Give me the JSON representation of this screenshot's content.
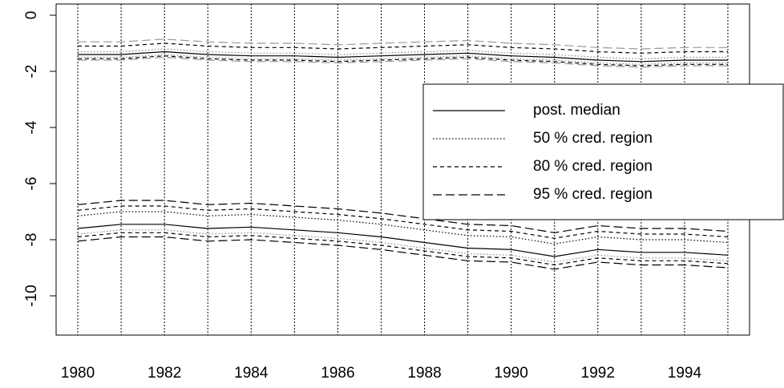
{
  "chart_data": {
    "type": "line",
    "x": [
      1980,
      1981,
      1982,
      1983,
      1984,
      1985,
      1986,
      1987,
      1988,
      1989,
      1990,
      1991,
      1992,
      1993,
      1994,
      1995
    ],
    "xlim": [
      1979.5,
      1995.5
    ],
    "xticks": [
      1980,
      1982,
      1984,
      1986,
      1988,
      1990,
      1992,
      1994
    ],
    "ylim": [
      -11.4,
      0.4
    ],
    "yticks": [
      0,
      -2,
      -4,
      -6,
      -8,
      -10
    ],
    "grid": true,
    "legend": {
      "position": "right",
      "entries": [
        {
          "label": "post. median",
          "dash": "solid",
          "color": "#000000"
        },
        {
          "label": "50 % cred. region",
          "dash": "dotted",
          "color": "#000000"
        },
        {
          "label": "80 % cred. region",
          "dash": "dashed",
          "color": "#000000"
        },
        {
          "label": "95 % cred. region",
          "dash": "longdash",
          "color": "#000000"
        }
      ]
    },
    "series": [
      {
        "dash": "longdash",
        "color": "#999999",
        "values": [
          -0.95,
          -0.95,
          -0.85,
          -0.95,
          -1.0,
          -1.0,
          -1.05,
          -1.0,
          -0.95,
          -0.9,
          -1.0,
          -1.05,
          -1.15,
          -1.2,
          -1.15,
          -1.15
        ]
      },
      {
        "dash": "dashed",
        "color": "#000000",
        "values": [
          -1.1,
          -1.1,
          -1.0,
          -1.1,
          -1.15,
          -1.15,
          -1.2,
          -1.15,
          -1.1,
          -1.05,
          -1.15,
          -1.2,
          -1.3,
          -1.35,
          -1.3,
          -1.3
        ]
      },
      {
        "dash": "dotted",
        "color": "#888888",
        "values": [
          -1.3,
          -1.3,
          -1.2,
          -1.3,
          -1.35,
          -1.35,
          -1.4,
          -1.35,
          -1.3,
          -1.25,
          -1.35,
          -1.4,
          -1.5,
          -1.55,
          -1.5,
          -1.5
        ]
      },
      {
        "dash": "solid",
        "color": "#000000",
        "values": [
          -1.4,
          -1.4,
          -1.3,
          -1.4,
          -1.45,
          -1.45,
          -1.5,
          -1.45,
          -1.4,
          -1.35,
          -1.45,
          -1.5,
          -1.6,
          -1.65,
          -1.6,
          -1.6
        ]
      },
      {
        "dash": "dotted",
        "color": "#888888",
        "values": [
          -1.5,
          -1.5,
          -1.4,
          -1.5,
          -1.55,
          -1.55,
          -1.6,
          -1.55,
          -1.5,
          -1.45,
          -1.55,
          -1.6,
          -1.7,
          -1.75,
          -1.7,
          -1.7
        ]
      },
      {
        "dash": "dashed",
        "color": "#000000",
        "values": [
          -1.55,
          -1.55,
          -1.45,
          -1.55,
          -1.6,
          -1.6,
          -1.65,
          -1.6,
          -1.55,
          -1.5,
          -1.6,
          -1.65,
          -1.75,
          -1.8,
          -1.75,
          -1.75
        ]
      },
      {
        "dash": "longdash",
        "color": "#999999",
        "values": [
          -1.6,
          -1.6,
          -1.5,
          -1.6,
          -1.65,
          -1.65,
          -1.7,
          -1.65,
          -1.6,
          -1.55,
          -1.65,
          -1.7,
          -1.8,
          -1.85,
          -1.8,
          -1.8
        ]
      },
      {
        "dash": "longdash",
        "color": "#000000",
        "values": [
          -6.75,
          -6.6,
          -6.6,
          -6.75,
          -6.7,
          -6.8,
          -6.9,
          -7.05,
          -7.25,
          -7.45,
          -7.5,
          -7.75,
          -7.5,
          -7.6,
          -7.6,
          -7.7
        ]
      },
      {
        "dash": "dashed",
        "color": "#000000",
        "values": [
          -6.95,
          -6.8,
          -6.8,
          -6.95,
          -6.9,
          -7.0,
          -7.1,
          -7.25,
          -7.45,
          -7.65,
          -7.7,
          -7.95,
          -7.7,
          -7.8,
          -7.8,
          -7.9
        ]
      },
      {
        "dash": "dotted",
        "color": "#000000",
        "values": [
          -7.15,
          -7.0,
          -7.0,
          -7.15,
          -7.1,
          -7.2,
          -7.3,
          -7.45,
          -7.65,
          -7.85,
          -7.9,
          -8.15,
          -7.9,
          -8.0,
          -8.0,
          -8.1
        ]
      },
      {
        "dash": "solid",
        "color": "#000000",
        "values": [
          -7.6,
          -7.45,
          -7.45,
          -7.6,
          -7.55,
          -7.65,
          -7.75,
          -7.9,
          -8.1,
          -8.3,
          -8.35,
          -8.6,
          -8.35,
          -8.45,
          -8.45,
          -8.55
        ]
      },
      {
        "dash": "dotted",
        "color": "#888888",
        "values": [
          -7.8,
          -7.65,
          -7.65,
          -7.8,
          -7.75,
          -7.85,
          -7.95,
          -8.1,
          -8.3,
          -8.5,
          -8.55,
          -8.8,
          -8.55,
          -8.65,
          -8.65,
          -8.75
        ]
      },
      {
        "dash": "dashed",
        "color": "#000000",
        "values": [
          -7.9,
          -7.75,
          -7.75,
          -7.9,
          -7.85,
          -7.95,
          -8.05,
          -8.2,
          -8.4,
          -8.6,
          -8.65,
          -8.9,
          -8.65,
          -8.75,
          -8.75,
          -8.85
        ]
      },
      {
        "dash": "longdash",
        "color": "#000000",
        "values": [
          -8.05,
          -7.9,
          -7.9,
          -8.05,
          -8.0,
          -8.1,
          -8.2,
          -8.35,
          -8.55,
          -8.75,
          -8.8,
          -9.05,
          -8.8,
          -8.9,
          -8.9,
          -9.0
        ]
      }
    ]
  }
}
